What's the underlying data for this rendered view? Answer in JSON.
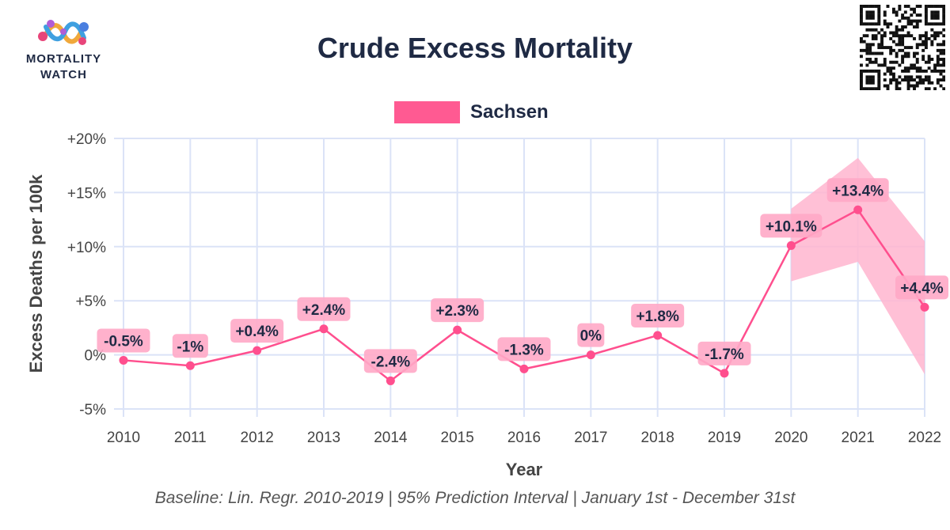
{
  "header": {
    "title": "Crude Excess Mortality",
    "logo_line1": "MORTALITY",
    "logo_line2": "WATCH",
    "logo_icon": "mortality-watch-logo",
    "qr_icon": "qr-code"
  },
  "footer": {
    "text": "Baseline: Lin. Regr. 2010-2019 | 95% Prediction Interval | January 1st - December 31st"
  },
  "colors": {
    "series": "#ff4f8e",
    "band": "#ffb5cf",
    "label_bg": "#ffa9c7",
    "grid": "#dbe3f7",
    "text": "#1f2a44"
  },
  "chart_data": {
    "type": "line",
    "title": "Crude Excess Mortality",
    "xlabel": "Year",
    "ylabel": "Excess Deaths per 100k",
    "ylim": [
      -5,
      20
    ],
    "yticks": [
      -5,
      0,
      5,
      10,
      15,
      20
    ],
    "ytick_labels": [
      "-5%",
      "0%",
      "+5%",
      "+10%",
      "+15%",
      "+20%"
    ],
    "x": [
      "2010",
      "2011",
      "2012",
      "2013",
      "2014",
      "2015",
      "2016",
      "2017",
      "2018",
      "2019",
      "2020",
      "2021",
      "2022"
    ],
    "grid": true,
    "legend": "top-center",
    "series": [
      {
        "name": "Sachsen",
        "values": [
          -0.5,
          -1,
          0.4,
          2.4,
          -2.4,
          2.3,
          -1.3,
          0,
          1.8,
          -1.7,
          10.1,
          13.4,
          4.4
        ],
        "data_labels": [
          "-0.5%",
          "-1%",
          "+0.4%",
          "+2.4%",
          "-2.4%",
          "+2.3%",
          "-1.3%",
          "0%",
          "+1.8%",
          "-1.7%",
          "+10.1%",
          "+13.4%",
          "+4.4%"
        ],
        "prediction_interval": {
          "x": [
            "2020",
            "2021",
            "2022"
          ],
          "lower": [
            6.8,
            8.6,
            -1.8
          ],
          "upper": [
            13.5,
            18.2,
            10.5
          ]
        }
      }
    ],
    "footnote": "Baseline: Lin. Regr. 2010-2019 | 95% Prediction Interval | January 1st - December 31st"
  }
}
